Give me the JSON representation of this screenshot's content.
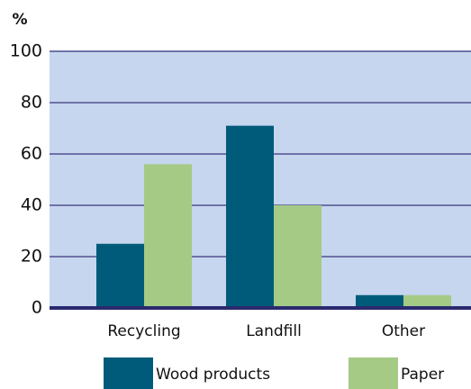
{
  "chart_data": {
    "type": "bar",
    "y_label": "%",
    "categories": [
      "Recycling",
      "Landfill",
      "Other"
    ],
    "series": [
      {
        "name": "Wood products",
        "color": "#005b7a",
        "values": [
          25,
          71,
          5
        ]
      },
      {
        "name": "Paper",
        "color": "#a4ca86",
        "values": [
          56,
          40,
          5
        ]
      }
    ],
    "ylim": [
      0,
      100
    ],
    "yticks": [
      0,
      20,
      40,
      60,
      80,
      100
    ],
    "grid": true
  }
}
